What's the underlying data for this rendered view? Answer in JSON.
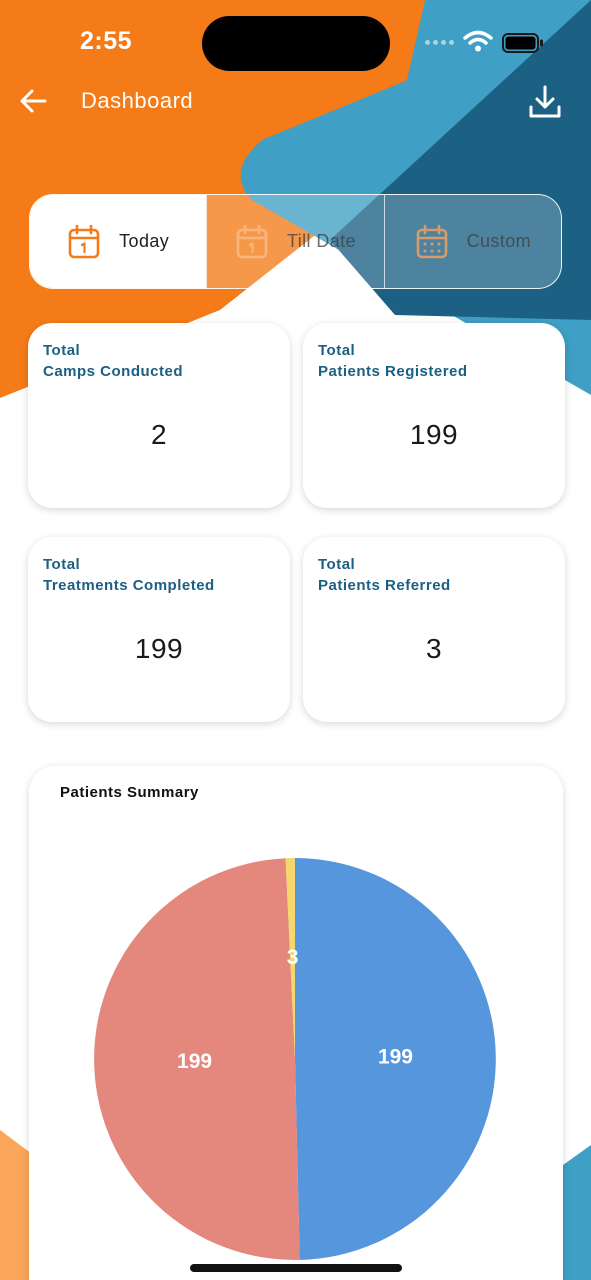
{
  "status_bar": {
    "time": "2:55"
  },
  "header": {
    "title": "Dashboard",
    "back_icon": "arrow-left-icon",
    "download_icon": "download-icon"
  },
  "tabs": [
    {
      "label": "Today",
      "icon": "calendar-icon",
      "active": true
    },
    {
      "label": "Till Date",
      "icon": "calendar-icon",
      "active": false
    },
    {
      "label": "Custom",
      "icon": "calendar-grid-icon",
      "active": false
    }
  ],
  "stats": [
    {
      "line1": "Total",
      "line2": "Camps Conducted",
      "value": "2"
    },
    {
      "line1": "Total",
      "line2": "Patients Registered",
      "value": "199"
    },
    {
      "line1": "Total",
      "line2": "Treatments Completed",
      "value": "199"
    },
    {
      "line1": "Total",
      "line2": "Patients Referred",
      "value": "3"
    }
  ],
  "colors": {
    "orange": "#f47b18",
    "blue_light": "#3f9fc4",
    "blue_dark": "#1c6184",
    "card_title": "#1b5f82",
    "pie_blue": "#5596dd",
    "pie_red": "#e4877c",
    "pie_yellow": "#f5d86b"
  },
  "chart_data": {
    "type": "pie",
    "title": "Patients Summary",
    "values": [
      199,
      199,
      3
    ],
    "colors": [
      "#5596dd",
      "#e4877c",
      "#f5d86b"
    ],
    "data_labels": [
      "199",
      "199",
      "3"
    ]
  }
}
